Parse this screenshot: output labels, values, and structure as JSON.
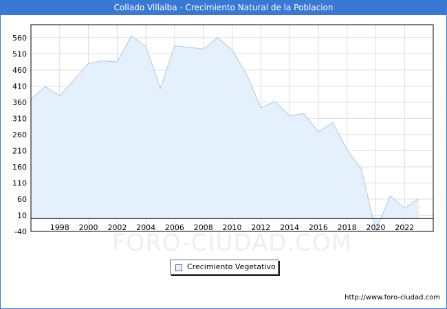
{
  "title": "Collado Villalba - Crecimiento Natural de la Poblacion",
  "watermark": "FORO-CIUDAD.COM",
  "footer_url": "http://www.foro-ciudad.com",
  "colors": {
    "title_bar": "#3a78d6",
    "area_fill": "#e4f1fc",
    "line": "#a9c9ec",
    "grid": "#dddddd"
  },
  "chart_data": {
    "type": "area",
    "title": "Collado Villalba - Crecimiento Natural de la Poblacion",
    "xlabel": "",
    "ylabel": "",
    "x": [
      1996,
      1997,
      1998,
      1999,
      2000,
      2001,
      2002,
      2003,
      2004,
      2005,
      2006,
      2007,
      2008,
      2009,
      2010,
      2011,
      2012,
      2013,
      2014,
      2015,
      2016,
      2017,
      2018,
      2019,
      2020,
      2021,
      2022,
      2023
    ],
    "series": [
      {
        "name": "Crecimiento Vegetativo",
        "values": [
          370,
          408,
          380,
          430,
          480,
          488,
          485,
          565,
          533,
          402,
          535,
          530,
          525,
          560,
          522,
          447,
          343,
          362,
          318,
          325,
          268,
          297,
          213,
          153,
          -38,
          70,
          32,
          62
        ]
      }
    ],
    "x_ticks": [
      "1998",
      "2000",
      "2002",
      "2004",
      "2006",
      "2008",
      "2010",
      "2012",
      "2014",
      "2016",
      "2018",
      "2020",
      "2022"
    ],
    "x_tick_values": [
      1998,
      2000,
      2002,
      2004,
      2006,
      2008,
      2010,
      2012,
      2014,
      2016,
      2018,
      2020,
      2022
    ],
    "y_ticks": [
      "560",
      "510",
      "460",
      "410",
      "360",
      "310",
      "260",
      "210",
      "160",
      "110",
      "60",
      "10",
      "-40"
    ],
    "y_tick_values": [
      560,
      510,
      460,
      410,
      360,
      310,
      260,
      210,
      160,
      110,
      60,
      10,
      -40
    ],
    "xlim": [
      1996,
      2024
    ],
    "ylim": [
      -40,
      600
    ],
    "grid": true,
    "legend": {
      "position": "bottom-center",
      "entries": [
        "Crecimiento Vegetativo"
      ]
    }
  }
}
